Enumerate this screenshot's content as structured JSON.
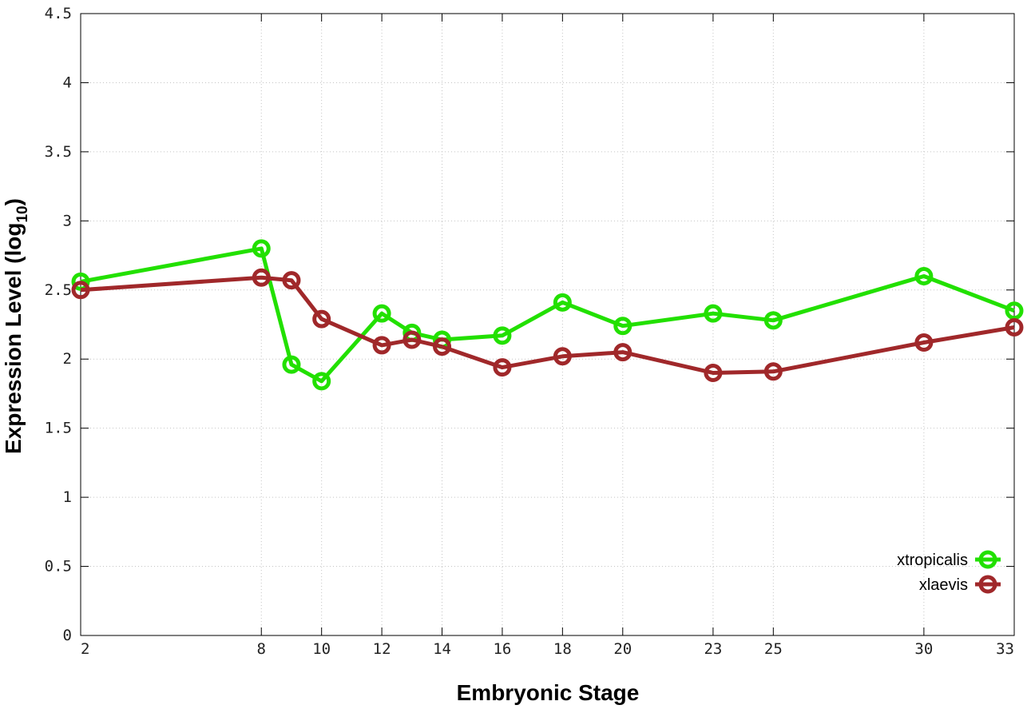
{
  "chart_data": {
    "type": "line",
    "xlabel": "Embryonic Stage",
    "ylabel_main": "Expression Level (log",
    "ylabel_sub": "10",
    "ylabel_close": ")",
    "xlim": [
      2,
      33
    ],
    "ylim": [
      0,
      4.5
    ],
    "x_ticks": [
      2,
      8,
      10,
      12,
      14,
      16,
      18,
      20,
      23,
      25,
      30,
      33
    ],
    "x_tick_labels": [
      "2",
      "8",
      "10",
      "12",
      "14",
      "16",
      "18",
      "20",
      "23",
      "25",
      "30",
      "33"
    ],
    "y_ticks": [
      0,
      0.5,
      1,
      1.5,
      2,
      2.5,
      3,
      3.5,
      4,
      4.5
    ],
    "y_tick_labels": [
      "0",
      "0.5",
      "1",
      "1.5",
      "2",
      "2.5",
      "3",
      "3.5",
      "4",
      "4.5"
    ],
    "grid": true,
    "legend_position": "bottom-right",
    "series": [
      {
        "name": "xtropicalis",
        "color": "#22e000",
        "x": [
          2,
          8,
          9,
          10,
          12,
          13,
          14,
          16,
          18,
          20,
          23,
          25,
          30,
          33
        ],
        "values": [
          2.56,
          2.8,
          1.96,
          1.84,
          2.33,
          2.19,
          2.14,
          2.17,
          2.41,
          2.24,
          2.33,
          2.28,
          2.6,
          2.35
        ]
      },
      {
        "name": "xlaevis",
        "color": "#a0282a",
        "x": [
          2,
          8,
          9,
          10,
          12,
          13,
          14,
          16,
          18,
          20,
          23,
          25,
          30,
          33
        ],
        "values": [
          2.5,
          2.59,
          2.57,
          2.29,
          2.1,
          2.14,
          2.09,
          1.94,
          2.02,
          2.05,
          1.9,
          1.91,
          2.12,
          2.23
        ]
      }
    ]
  }
}
